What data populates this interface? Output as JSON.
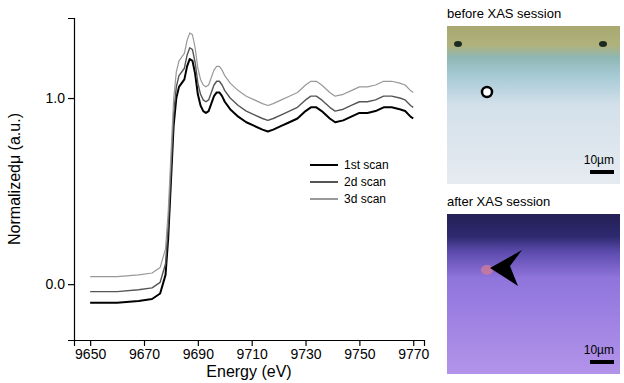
{
  "chart_data": {
    "type": "line",
    "x_label": "Energy (eV)",
    "y_label": "Normalizedμ (a.u.)",
    "x": [
      9650,
      9660,
      9668,
      9673,
      9676,
      9678,
      9679,
      9680,
      9681,
      9682,
      9683,
      9684,
      9685,
      9686,
      9687,
      9688,
      9689,
      9690,
      9691,
      9692,
      9693,
      9694,
      9695,
      9696,
      9697,
      9698,
      9699,
      9700,
      9702,
      9705,
      9708,
      9711,
      9714,
      9716,
      9718,
      9721,
      9724,
      9727,
      9730,
      9732,
      9734,
      9736,
      9739,
      9741,
      9744,
      9747,
      9750,
      9753,
      9756,
      9759,
      9762,
      9765,
      9767,
      9769,
      9770
    ],
    "series": [
      {
        "name": "1st scan",
        "color": "#000000",
        "values": [
          -0.1,
          -0.1,
          -0.09,
          -0.08,
          -0.05,
          0.05,
          0.25,
          0.55,
          0.85,
          1.0,
          1.06,
          1.08,
          1.1,
          1.17,
          1.21,
          1.2,
          1.13,
          1.02,
          0.96,
          0.93,
          0.92,
          0.93,
          0.97,
          1.01,
          1.03,
          1.03,
          1.01,
          0.98,
          0.94,
          0.9,
          0.87,
          0.85,
          0.83,
          0.82,
          0.83,
          0.85,
          0.87,
          0.89,
          0.93,
          0.95,
          0.95,
          0.93,
          0.89,
          0.87,
          0.88,
          0.9,
          0.92,
          0.92,
          0.93,
          0.95,
          0.95,
          0.94,
          0.93,
          0.9,
          0.89
        ]
      },
      {
        "name": "2d scan",
        "color": "#555555",
        "values": [
          -0.04,
          -0.04,
          -0.03,
          -0.02,
          0.01,
          0.11,
          0.31,
          0.61,
          0.91,
          1.06,
          1.12,
          1.14,
          1.16,
          1.23,
          1.27,
          1.26,
          1.19,
          1.08,
          1.02,
          0.99,
          0.98,
          0.99,
          1.03,
          1.07,
          1.09,
          1.09,
          1.07,
          1.04,
          1.0,
          0.96,
          0.93,
          0.91,
          0.89,
          0.88,
          0.89,
          0.91,
          0.93,
          0.95,
          0.99,
          1.01,
          1.01,
          0.99,
          0.95,
          0.93,
          0.94,
          0.96,
          0.98,
          0.98,
          0.99,
          1.01,
          1.01,
          1.0,
          0.99,
          0.96,
          0.95
        ]
      },
      {
        "name": "3d scan",
        "color": "#999999",
        "values": [
          0.04,
          0.04,
          0.05,
          0.06,
          0.09,
          0.19,
          0.39,
          0.69,
          0.99,
          1.14,
          1.2,
          1.22,
          1.24,
          1.31,
          1.35,
          1.34,
          1.27,
          1.16,
          1.1,
          1.07,
          1.06,
          1.07,
          1.11,
          1.15,
          1.17,
          1.17,
          1.15,
          1.12,
          1.08,
          1.04,
          1.01,
          0.99,
          0.97,
          0.96,
          0.97,
          0.99,
          1.01,
          1.03,
          1.07,
          1.09,
          1.09,
          1.07,
          1.03,
          1.01,
          1.02,
          1.04,
          1.06,
          1.06,
          1.07,
          1.09,
          1.09,
          1.08,
          1.07,
          1.04,
          1.03
        ]
      }
    ],
    "xlim": [
      9644,
      9774
    ],
    "xticks": [
      9650,
      9670,
      9690,
      9710,
      9730,
      9750,
      9770
    ],
    "ylim": [
      -0.3,
      1.43
    ],
    "yticks": [
      {
        "value": 0,
        "label": "0.0"
      },
      {
        "value": 1,
        "label": "1.0"
      }
    ],
    "grid": false,
    "legend": "right"
  },
  "images": [
    {
      "title": "before XAS session",
      "scale_bar": "10µm"
    },
    {
      "title": "after XAS session",
      "scale_bar": "10µm"
    }
  ]
}
